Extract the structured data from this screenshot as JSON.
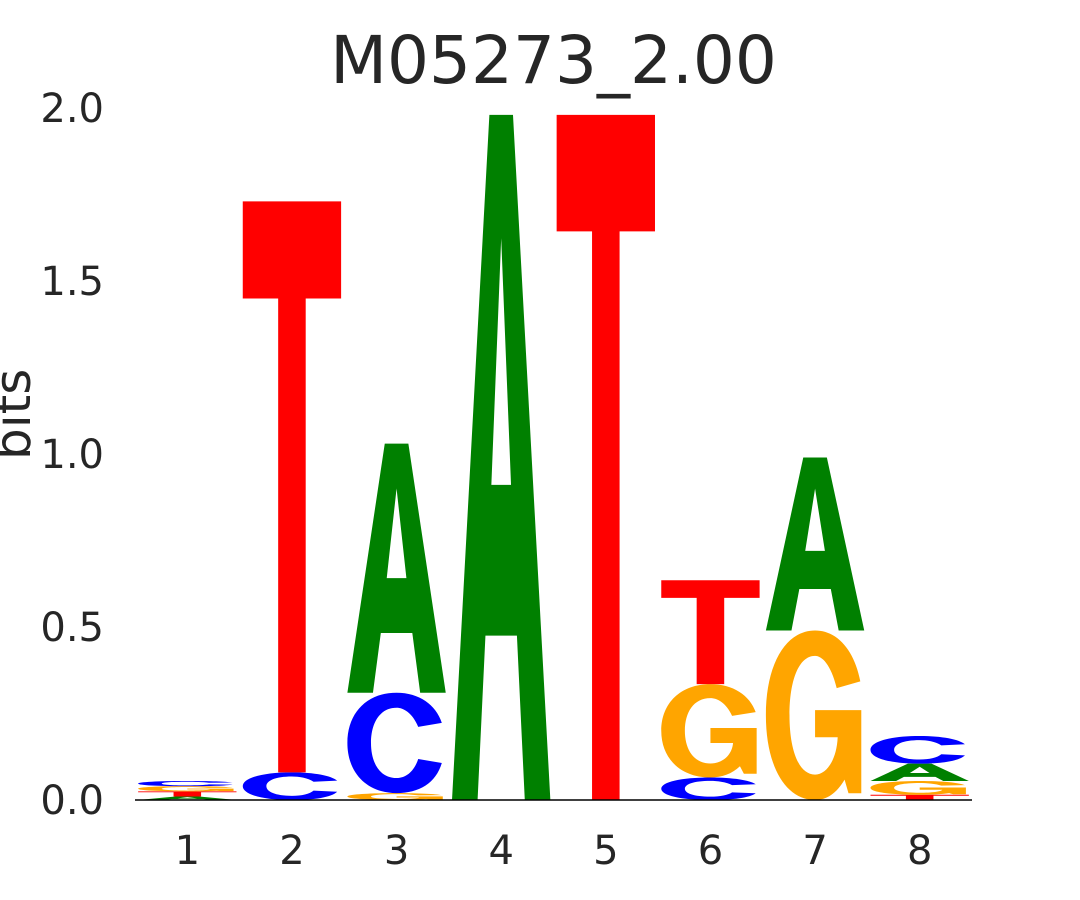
{
  "chart_data": {
    "type": "sequence-logo",
    "title": "M05273_2.00",
    "ylabel": "bits",
    "ylim": [
      0,
      2.0
    ],
    "yticks": [
      "0.0",
      "0.5",
      "1.0",
      "1.5",
      "2.0"
    ],
    "xticks": [
      "1",
      "2",
      "3",
      "4",
      "5",
      "6",
      "7",
      "8"
    ],
    "colors": {
      "A": "#008000",
      "C": "#0000ff",
      "G": "#ffa500",
      "T": "#ff0000"
    },
    "positions": [
      {
        "pos": "1",
        "stack": [
          [
            "A",
            0.01
          ],
          [
            "T",
            0.015
          ],
          [
            "G",
            0.015
          ],
          [
            "C",
            0.015
          ]
        ]
      },
      {
        "pos": "2",
        "stack": [
          [
            "C",
            0.08
          ],
          [
            "T",
            1.65
          ]
        ]
      },
      {
        "pos": "3",
        "stack": [
          [
            "G",
            0.02
          ],
          [
            "C",
            0.29
          ],
          [
            "A",
            0.72
          ]
        ]
      },
      {
        "pos": "4",
        "stack": [
          [
            "A",
            1.98
          ]
        ]
      },
      {
        "pos": "5",
        "stack": [
          [
            "T",
            1.98
          ]
        ]
      },
      {
        "pos": "6",
        "stack": [
          [
            "C",
            0.065
          ],
          [
            "G",
            0.27
          ],
          [
            "T",
            0.3
          ]
        ]
      },
      {
        "pos": "7",
        "stack": [
          [
            "G",
            0.49
          ],
          [
            "A",
            0.5
          ]
        ]
      },
      {
        "pos": "8",
        "stack": [
          [
            "T",
            0.015
          ],
          [
            "G",
            0.04
          ],
          [
            "A",
            0.05
          ],
          [
            "C",
            0.08
          ]
        ]
      }
    ]
  }
}
